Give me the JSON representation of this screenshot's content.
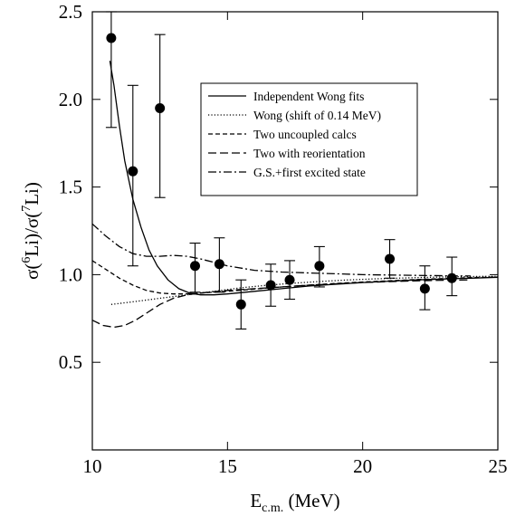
{
  "chart_data": {
    "type": "scatter",
    "title": "",
    "xlabel": {
      "main": "E",
      "sub": "c.m.",
      "tail": " (MeV)"
    },
    "ylabel": {
      "p1": "σ(",
      "sup1": "6",
      "p2": "Li)/σ(",
      "sup2": "7",
      "p3": "Li)"
    },
    "xlim": [
      10,
      25
    ],
    "ylim": [
      0,
      2.5
    ],
    "xticks": [
      10,
      15,
      20,
      25
    ],
    "yticks": [
      0.5,
      1.0,
      1.5,
      2.0,
      2.5
    ],
    "xtick_labels": [
      "10",
      "15",
      "20",
      "25"
    ],
    "ytick_labels": [
      "0.5",
      "1.0",
      "1.5",
      "2.0",
      "2.5"
    ],
    "grid": false,
    "legend_position": "top-right",
    "data_points": [
      {
        "x": 10.7,
        "y": 2.35,
        "ylo": 1.84,
        "yhi": 2.5
      },
      {
        "x": 11.5,
        "y": 1.59,
        "ylo": 1.05,
        "yhi": 2.08
      },
      {
        "x": 12.5,
        "y": 1.95,
        "ylo": 1.44,
        "yhi": 2.37
      },
      {
        "x": 13.8,
        "y": 1.05,
        "ylo": 0.9,
        "yhi": 1.18
      },
      {
        "x": 14.7,
        "y": 1.06,
        "ylo": 0.9,
        "yhi": 1.21
      },
      {
        "x": 15.5,
        "y": 0.83,
        "ylo": 0.69,
        "yhi": 0.97
      },
      {
        "x": 16.6,
        "y": 0.94,
        "ylo": 0.82,
        "yhi": 1.06
      },
      {
        "x": 17.3,
        "y": 0.97,
        "ylo": 0.86,
        "yhi": 1.08
      },
      {
        "x": 18.4,
        "y": 1.05,
        "ylo": 0.93,
        "yhi": 1.16
      },
      {
        "x": 21.0,
        "y": 1.09,
        "ylo": 0.98,
        "yhi": 1.2
      },
      {
        "x": 22.3,
        "y": 0.92,
        "ylo": 0.8,
        "yhi": 1.05
      },
      {
        "x": 23.3,
        "y": 0.98,
        "ylo": 0.88,
        "yhi": 1.1
      }
    ],
    "series": [
      {
        "name": "Independent Wong fits",
        "dash": "none",
        "x": [
          10.65,
          10.8,
          11.0,
          11.2,
          11.5,
          11.8,
          12.1,
          12.4,
          12.8,
          13.2,
          13.6,
          14.0,
          14.5,
          15.0,
          16.0,
          17.0,
          18.0,
          19.0,
          20.0,
          21.0,
          22.0,
          23.0,
          24.0,
          25.0
        ],
        "y": [
          2.22,
          2.08,
          1.85,
          1.65,
          1.43,
          1.27,
          1.14,
          1.05,
          0.97,
          0.92,
          0.895,
          0.885,
          0.885,
          0.89,
          0.905,
          0.92,
          0.935,
          0.945,
          0.955,
          0.963,
          0.97,
          0.975,
          0.98,
          0.985
        ]
      },
      {
        "name": "Wong (shift of 0.14 MeV)",
        "dash": "1.2,2.2",
        "x": [
          10.7,
          11.5,
          12.5,
          13.5,
          14.5,
          15.5,
          16.5,
          17.5,
          18.5,
          19.5,
          20.5,
          21.5,
          22.5,
          23.5,
          24.5,
          25.0
        ],
        "y": [
          0.83,
          0.845,
          0.865,
          0.885,
          0.905,
          0.925,
          0.94,
          0.952,
          0.962,
          0.97,
          0.976,
          0.981,
          0.985,
          0.988,
          0.99,
          0.99
        ]
      },
      {
        "name": "Two uncoupled calcs",
        "dash": "5,3",
        "x": [
          10.0,
          10.5,
          11.0,
          11.5,
          12.0,
          12.5,
          13.0,
          13.5,
          14.0,
          15.0,
          16.0,
          17.0,
          18.0,
          19.0,
          20.0,
          21.0,
          22.0,
          23.0,
          24.0,
          25.0
        ],
        "y": [
          1.08,
          1.03,
          0.98,
          0.94,
          0.91,
          0.895,
          0.89,
          0.89,
          0.895,
          0.905,
          0.918,
          0.93,
          0.94,
          0.95,
          0.958,
          0.965,
          0.972,
          0.978,
          0.983,
          0.987
        ]
      },
      {
        "name": "Two with reorientation",
        "dash": "9,4",
        "x": [
          10.0,
          10.4,
          10.8,
          11.2,
          11.6,
          12.0,
          12.5,
          13.0,
          13.5,
          14.0,
          15.0,
          16.0,
          17.0,
          18.0,
          19.0,
          20.0,
          21.0,
          22.0,
          23.0,
          24.0
        ],
        "y": [
          0.74,
          0.71,
          0.7,
          0.71,
          0.74,
          0.78,
          0.83,
          0.865,
          0.885,
          0.895,
          0.91,
          0.92,
          0.93,
          0.94,
          0.948,
          0.955,
          0.96,
          0.965,
          0.968,
          0.97
        ]
      },
      {
        "name": "G.S.+first excited state",
        "dash": "9,3,2,3",
        "x": [
          10.0,
          10.5,
          11.0,
          11.5,
          12.0,
          12.5,
          13.0,
          13.5,
          14.0,
          14.5,
          15.0,
          16.0,
          17.0,
          18.0,
          19.0,
          20.0,
          21.0,
          22.0,
          23.0,
          24.0
        ],
        "y": [
          1.29,
          1.22,
          1.16,
          1.12,
          1.105,
          1.105,
          1.11,
          1.105,
          1.09,
          1.07,
          1.05,
          1.025,
          1.015,
          1.01,
          1.005,
          1.0,
          0.998,
          0.996,
          0.994,
          0.992
        ]
      }
    ]
  }
}
